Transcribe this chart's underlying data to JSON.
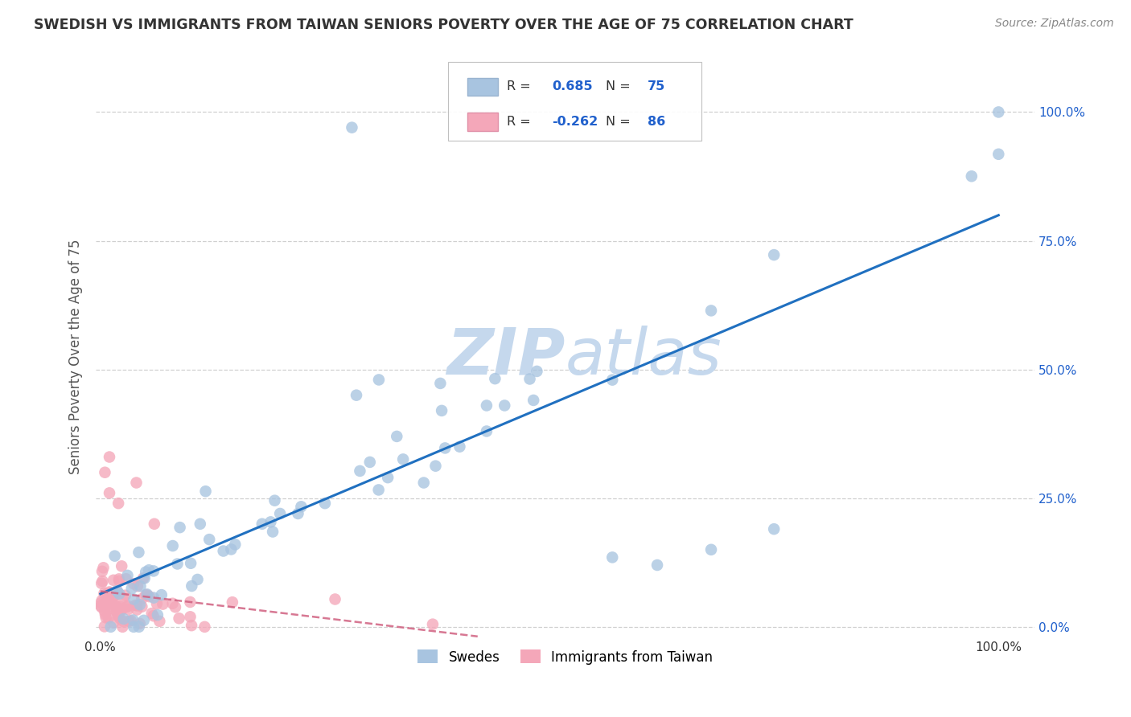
{
  "title": "SWEDISH VS IMMIGRANTS FROM TAIWAN SENIORS POVERTY OVER THE AGE OF 75 CORRELATION CHART",
  "source": "Source: ZipAtlas.com",
  "ylabel": "Seniors Poverty Over the Age of 75",
  "blue_color": "#a8c4e0",
  "pink_color": "#f4a7b9",
  "trend_blue_color": "#2070c0",
  "trend_pink_color": "#d06080",
  "watermark_color": "#c5d8ed",
  "swedes_label": "Swedes",
  "taiwan_label": "Immigrants from Taiwan",
  "n_blue": 75,
  "n_pink": 86,
  "r_blue": 0.685,
  "r_pink": -0.262,
  "ytick_labels_right": [
    "100.0%",
    "75.0%",
    "50.0%",
    "25.0%",
    "0.0%"
  ],
  "ytick_values": [
    1.0,
    0.75,
    0.5,
    0.25,
    0.0
  ],
  "xtick_labels_bottom": [
    "0.0%",
    "100.0%"
  ],
  "xtick_values_bottom": [
    0.0,
    1.0
  ],
  "background_color": "#ffffff",
  "grid_color": "#d0d0d0",
  "legend_r_blue": "0.685",
  "legend_n_blue": "75",
  "legend_r_pink": "-0.262",
  "legend_n_pink": "86",
  "accent_color": "#2060cc",
  "title_color": "#333333",
  "source_color": "#888888",
  "ylabel_color": "#555555"
}
